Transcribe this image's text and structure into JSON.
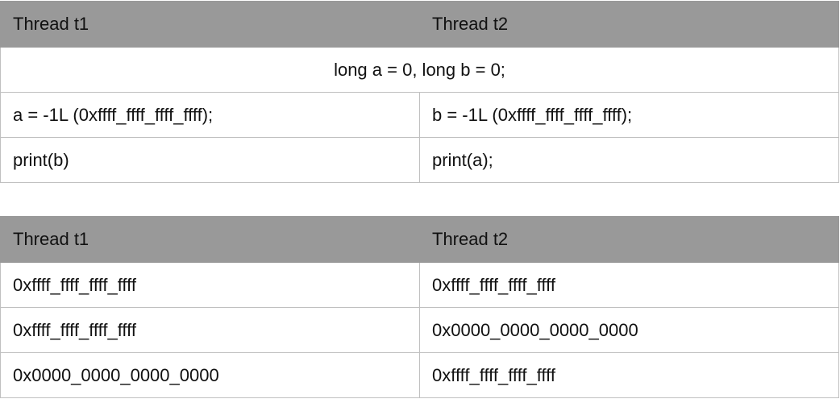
{
  "table1": {
    "headers": [
      "Thread t1",
      "Thread t2"
    ],
    "shared": "long a = 0, long b = 0;",
    "rows": [
      [
        "a = -1L (0xffff_ffff_ffff_ffff);",
        "b = -1L (0xffff_ffff_ffff_ffff);"
      ],
      [
        "print(b)",
        "print(a);"
      ]
    ]
  },
  "table2": {
    "headers": [
      "Thread t1",
      "Thread t2"
    ],
    "rows": [
      [
        "0xffff_ffff_ffff_ffff",
        "0xffff_ffff_ffff_ffff"
      ],
      [
        "0xffff_ffff_ffff_ffff",
        "0x0000_0000_0000_0000"
      ],
      [
        "0x0000_0000_0000_0000",
        "0xffff_ffff_ffff_ffff"
      ]
    ]
  },
  "colors": {
    "header_bg": "#999999",
    "border": "#c0c0c0"
  }
}
